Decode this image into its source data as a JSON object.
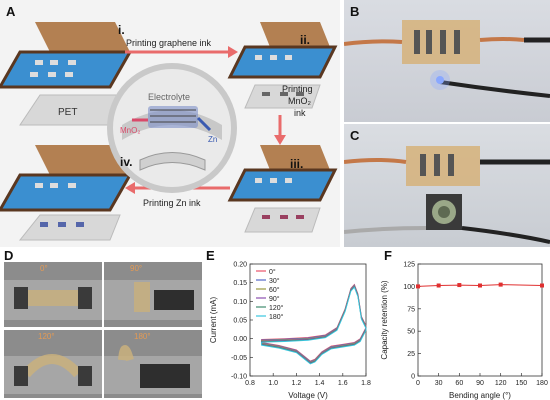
{
  "panels": {
    "a": "A",
    "b": "B",
    "c": "C",
    "d": "D",
    "e": "E",
    "f": "F"
  },
  "schematic": {
    "step1": "i.",
    "step2": "ii.",
    "step3": "iii.",
    "step4": "iv.",
    "arrow1": "Printing graphene ink",
    "arrow2_l1": "Printing",
    "arrow2_l2": "MnO₂",
    "arrow2_l3": "ink",
    "arrow3": "Printing Zn ink",
    "substrate": "PET",
    "electrolyte": "Electrolyte",
    "cathode": "MnO₂",
    "anode": "Zn"
  },
  "bending_photos": {
    "a0": "0°",
    "a90": "90°",
    "a120": "120°",
    "a180": "180°"
  },
  "chart_data": [
    {
      "type": "line",
      "xlabel": "Voltage (V)",
      "ylabel": "Current (mA)",
      "xlim": [
        0.8,
        1.8
      ],
      "ylim": [
        -0.1,
        0.2
      ],
      "xticks": [
        0.8,
        1.0,
        1.2,
        1.4,
        1.6,
        1.8
      ],
      "yticks": [
        -0.1,
        -0.05,
        0.0,
        0.05,
        0.1,
        0.15,
        0.2
      ],
      "legend_position": "top-left",
      "series": [
        {
          "name": "0°",
          "color": "#e8546a"
        },
        {
          "name": "30°",
          "color": "#5468c8"
        },
        {
          "name": "60°",
          "color": "#9a9a40"
        },
        {
          "name": "90°",
          "color": "#8c4fb0"
        },
        {
          "name": "120°",
          "color": "#3e8c6e"
        },
        {
          "name": "180°",
          "color": "#39c6e0"
        }
      ],
      "cv_upper": [
        [
          0.9,
          -0.002
        ],
        [
          1.1,
          0.0
        ],
        [
          1.3,
          0.003
        ],
        [
          1.45,
          0.01
        ],
        [
          1.55,
          0.03
        ],
        [
          1.62,
          0.08
        ],
        [
          1.67,
          0.135
        ],
        [
          1.7,
          0.145
        ],
        [
          1.73,
          0.12
        ],
        [
          1.76,
          0.06
        ],
        [
          1.8,
          0.035
        ]
      ],
      "cv_lower": [
        [
          1.8,
          0.03
        ],
        [
          1.75,
          0.0
        ],
        [
          1.7,
          -0.01
        ],
        [
          1.6,
          -0.015
        ],
        [
          1.5,
          -0.02
        ],
        [
          1.42,
          -0.035
        ],
        [
          1.36,
          -0.055
        ],
        [
          1.32,
          -0.06
        ],
        [
          1.28,
          -0.05
        ],
        [
          1.2,
          -0.03
        ],
        [
          1.05,
          -0.018
        ],
        [
          0.9,
          -0.01
        ]
      ]
    },
    {
      "type": "line",
      "xlabel": "Bending angle (°)",
      "ylabel": "Capacity retention (%)",
      "xlim": [
        0,
        180
      ],
      "ylim": [
        0,
        125
      ],
      "xticks": [
        0,
        30,
        60,
        90,
        120,
        150,
        180
      ],
      "yticks": [
        0,
        25,
        50,
        75,
        100,
        125
      ],
      "grid": false,
      "series": [
        {
          "color": "#e03030",
          "x": [
            0,
            30,
            60,
            90,
            120,
            180
          ],
          "y": [
            100,
            101,
            101.5,
            101,
            102,
            101
          ]
        }
      ]
    }
  ]
}
